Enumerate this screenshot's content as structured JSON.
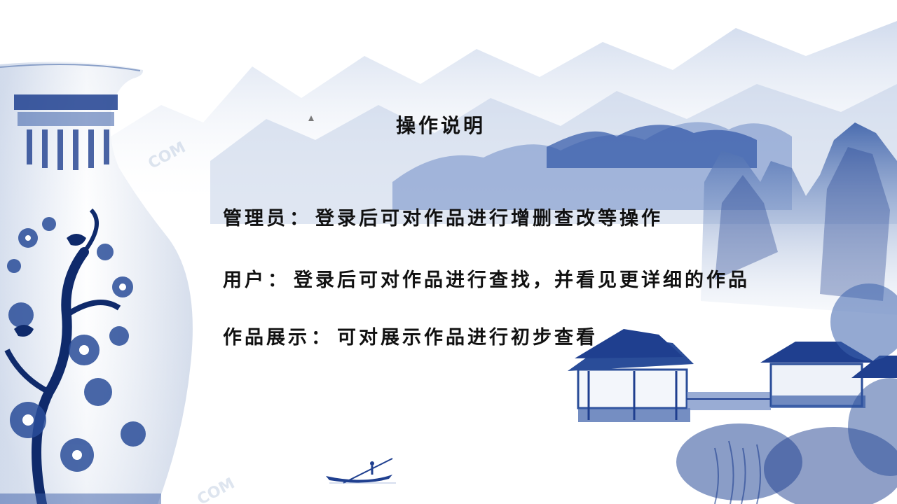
{
  "slide": {
    "title": "操作说明",
    "lines": [
      {
        "role": "管理员",
        "separator": "：",
        "text": "登录后可对作品进行增删查改等操作"
      },
      {
        "role": "用户",
        "separator": "：",
        "text": "登录后可对作品进行查找，并看见更详细的作品"
      },
      {
        "role": "作品展示",
        "separator": "：",
        "text": "可对展示作品进行初步查看"
      }
    ]
  },
  "watermarks": [
    "COM",
    "COM"
  ],
  "decor": {
    "background_art": "blue-and-white porcelain vase with ink-wash mountains, pavilions and a fishing boat",
    "palette": {
      "porcelain_blue": "#1f3f8f",
      "mist_blue": "#9fb4d8",
      "ink_dark": "#0f2a6b"
    }
  }
}
